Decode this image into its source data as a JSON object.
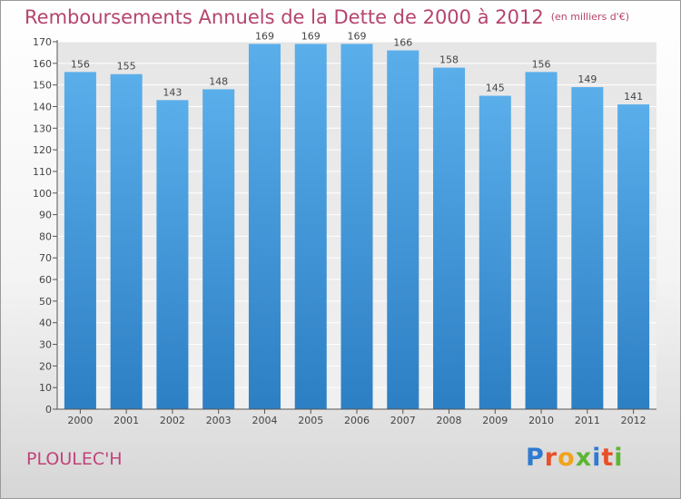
{
  "header": {
    "title": "Remboursements Annuels de la Dette de 2000 à 2012",
    "unit": "(en milliers d'€)"
  },
  "footer": {
    "city": "PLOULEC'H",
    "brand": "Proxiti",
    "brand_colors": [
      "#2f7bd0",
      "#e8502a",
      "#f2a31b",
      "#5db534",
      "#2f7bd0",
      "#e8502a",
      "#5db534"
    ]
  },
  "chart_data": {
    "type": "bar",
    "categories": [
      "2000",
      "2001",
      "2002",
      "2003",
      "2004",
      "2005",
      "2006",
      "2007",
      "2008",
      "2009",
      "2010",
      "2011",
      "2012"
    ],
    "values": [
      156,
      155,
      143,
      148,
      169,
      169,
      169,
      166,
      158,
      145,
      156,
      149,
      141
    ],
    "ylim": [
      0,
      170
    ],
    "yticks": [
      0,
      10,
      20,
      30,
      40,
      50,
      60,
      70,
      80,
      90,
      100,
      110,
      120,
      130,
      140,
      150,
      160,
      170
    ],
    "grid": true,
    "bar_color": "#4a9ee0"
  }
}
